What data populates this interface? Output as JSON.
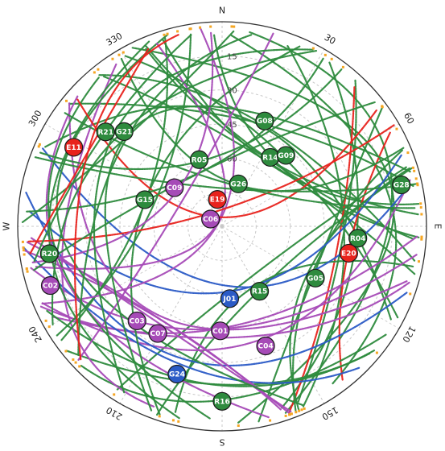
{
  "chart_data": {
    "type": "scatter",
    "subtype": "polar skyplot",
    "title": "",
    "radial_axis": {
      "range": [
        0,
        90
      ],
      "direction": "zenith at center, horizon at edge",
      "tick_labels": [
        "15",
        "30",
        "45",
        "60"
      ]
    },
    "angular_axis": {
      "range": [
        0,
        360
      ],
      "direction": "clockwise from north",
      "cardinal_labels": [
        {
          "azimuth": 0,
          "text": "N"
        },
        {
          "azimuth": 90,
          "text": "E"
        },
        {
          "azimuth": 180,
          "text": "S"
        },
        {
          "azimuth": 270,
          "text": "W"
        }
      ],
      "degree_labels": [
        {
          "azimuth": 30,
          "text": "30"
        },
        {
          "azimuth": 60,
          "text": "60"
        },
        {
          "azimuth": 120,
          "text": "120"
        },
        {
          "azimuth": 150,
          "text": "150"
        },
        {
          "azimuth": 210,
          "text": "210"
        },
        {
          "azimuth": 240,
          "text": "240"
        },
        {
          "azimuth": 300,
          "text": "300"
        },
        {
          "azimuth": 330,
          "text": "330"
        }
      ]
    },
    "grid": true,
    "colors": {
      "GPS": "#2e8b3e",
      "GLONASS": "#2e8b3e",
      "Galileo": "#e8231d",
      "BeiDou-GEO": "#a64bb7",
      "BeiDou-IGSO": "#2b5bc6",
      "endpoint": "#f5a623"
    },
    "satellites": [
      {
        "id": "G08",
        "az": 22,
        "el": 40,
        "system": "GPS"
      },
      {
        "id": "R14",
        "az": 35,
        "el": 53,
        "system": "GLONASS"
      },
      {
        "id": "G09",
        "az": 42,
        "el": 48,
        "system": "GPS"
      },
      {
        "id": "G28",
        "az": 77,
        "el": 9,
        "system": "GPS"
      },
      {
        "id": "R04",
        "az": 95,
        "el": 30,
        "system": "GLONASS"
      },
      {
        "id": "E20",
        "az": 102,
        "el": 33,
        "system": "Galileo"
      },
      {
        "id": "G05",
        "az": 119,
        "el": 43,
        "system": "GPS"
      },
      {
        "id": "R15",
        "az": 150,
        "el": 57,
        "system": "GLONASS"
      },
      {
        "id": "C04",
        "az": 160,
        "el": 34,
        "system": "BeiDou-GEO"
      },
      {
        "id": "J01",
        "az": 174,
        "el": 58,
        "system": "BeiDou-IGSO"
      },
      {
        "id": "C01",
        "az": 181,
        "el": 44,
        "system": "BeiDou-GEO"
      },
      {
        "id": "R16",
        "az": 180,
        "el": 13,
        "system": "GLONASS"
      },
      {
        "id": "G24",
        "az": 197,
        "el": 22,
        "system": "BeiDou-IGSO"
      },
      {
        "id": "C07",
        "az": 211,
        "el": 35,
        "system": "BeiDou-GEO"
      },
      {
        "id": "C03",
        "az": 222,
        "el": 34,
        "system": "BeiDou-GEO"
      },
      {
        "id": "C02",
        "az": 251,
        "el": 10,
        "system": "BeiDou-GEO"
      },
      {
        "id": "R20",
        "az": 261,
        "el": 13,
        "system": "GLONASS"
      },
      {
        "id": "G15",
        "az": 289,
        "el": 54,
        "system": "GPS"
      },
      {
        "id": "C06",
        "az": 302,
        "el": 84,
        "system": "BeiDou-GEO"
      },
      {
        "id": "E19",
        "az": 350,
        "el": 78,
        "system": "Galileo"
      },
      {
        "id": "G26",
        "az": 21,
        "el": 70,
        "system": "GPS"
      },
      {
        "id": "R05",
        "az": 341,
        "el": 59,
        "system": "GLONASS"
      },
      {
        "id": "C09",
        "az": 309,
        "el": 63,
        "system": "BeiDou-GEO"
      },
      {
        "id": "G21",
        "az": 314,
        "el": 30,
        "system": "GPS"
      },
      {
        "id": "R21",
        "az": 309,
        "el": 24,
        "system": "GLONASS"
      },
      {
        "id": "E11",
        "az": 298,
        "el": 16,
        "system": "Galileo"
      }
    ]
  }
}
